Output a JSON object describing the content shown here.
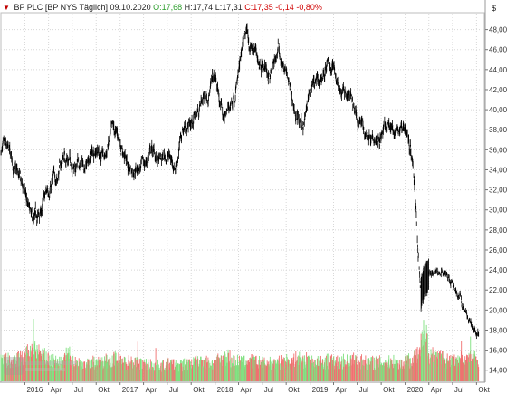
{
  "header": {
    "instrument": "BP PLC",
    "exchange": "[BP NYS",
    "period": "Täglich]",
    "date": "09.10.2020",
    "open": "O:17,68",
    "high": "H:17,74",
    "low": "L:17,31",
    "close": "C:17,35",
    "change": "-0,14",
    "change_pct": "-0,80%"
  },
  "currency": "$",
  "colors": {
    "price": "#000000",
    "volume_up": "#7fe07f",
    "volume_down": "#f07070",
    "grid": "#d8d8d8",
    "up_text": "#2a9d2a",
    "down_text": "#d00000"
  },
  "chart_data": {
    "type": "ohlc",
    "title": "BP PLC [BP NYS Täglich]",
    "ylabel": "$",
    "ylim": [
      12.8,
      49.5
    ],
    "y_ticks": [
      "14,00",
      "16,00",
      "18,00",
      "20,00",
      "22,00",
      "24,00",
      "26,00",
      "28,00",
      "30,00",
      "32,00",
      "34,00",
      "36,00",
      "38,00",
      "40,00",
      "42,00",
      "44,00",
      "46,00",
      "48,00"
    ],
    "x_ticks": [
      "2016",
      "Apr",
      "Jul",
      "Okt",
      "2017",
      "Apr",
      "Jul",
      "Okt",
      "2018",
      "Apr",
      "Jul",
      "Okt",
      "2019",
      "Apr",
      "Jul",
      "Okt",
      "2020",
      "Apr",
      "Jul",
      "Okt"
    ],
    "x_start": "2015-10-01",
    "x_end": "2020-10-31",
    "price_series": {
      "name": "BP",
      "points": [
        [
          "2015-10-01",
          36.0
        ],
        [
          "2015-11-01",
          35.3
        ],
        [
          "2015-12-01",
          33.5
        ],
        [
          "2016-01-01",
          31.5
        ],
        [
          "2016-02-01",
          28.2
        ],
        [
          "2016-03-01",
          29.5
        ],
        [
          "2016-04-01",
          32.2
        ],
        [
          "2016-05-01",
          33.2
        ],
        [
          "2016-06-01",
          35.5
        ],
        [
          "2016-07-01",
          34.8
        ],
        [
          "2016-08-01",
          34.2
        ],
        [
          "2016-09-01",
          35.0
        ],
        [
          "2016-10-01",
          36.5
        ],
        [
          "2016-11-01",
          35.0
        ],
        [
          "2016-12-01",
          37.5
        ],
        [
          "2017-01-01",
          37.0
        ],
        [
          "2017-02-01",
          34.2
        ],
        [
          "2017-03-01",
          34.5
        ],
        [
          "2017-04-01",
          34.2
        ],
        [
          "2017-05-01",
          36.0
        ],
        [
          "2017-06-01",
          34.6
        ],
        [
          "2017-07-01",
          35.5
        ],
        [
          "2017-08-01",
          34.5
        ],
        [
          "2017-09-01",
          38.2
        ],
        [
          "2017-10-01",
          38.8
        ],
        [
          "2017-11-01",
          40.0
        ],
        [
          "2017-12-01",
          42.0
        ],
        [
          "2018-01-01",
          43.0
        ],
        [
          "2018-02-01",
          39.0
        ],
        [
          "2018-03-01",
          40.5
        ],
        [
          "2018-04-01",
          43.5
        ],
        [
          "2018-05-01",
          47.2
        ],
        [
          "2018-06-01",
          45.5
        ],
        [
          "2018-07-01",
          45.0
        ],
        [
          "2018-08-01",
          43.2
        ],
        [
          "2018-09-01",
          46.0
        ],
        [
          "2018-10-01",
          43.5
        ],
        [
          "2018-11-01",
          40.0
        ],
        [
          "2018-12-01",
          38.0
        ],
        [
          "2019-01-01",
          41.5
        ],
        [
          "2019-02-01",
          42.5
        ],
        [
          "2019-03-01",
          44.0
        ],
        [
          "2019-04-01",
          44.5
        ],
        [
          "2019-05-01",
          42.0
        ],
        [
          "2019-06-01",
          41.5
        ],
        [
          "2019-07-01",
          39.5
        ],
        [
          "2019-08-01",
          37.5
        ],
        [
          "2019-09-01",
          38.0
        ],
        [
          "2019-10-01",
          37.5
        ],
        [
          "2019-11-01",
          38.5
        ],
        [
          "2019-12-01",
          37.8
        ],
        [
          "2020-01-01",
          38.5
        ],
        [
          "2020-02-01",
          34.5
        ],
        [
          "2020-03-01",
          22.0
        ],
        [
          "2020-04-01",
          24.0
        ],
        [
          "2020-05-01",
          23.5
        ],
        [
          "2020-06-01",
          24.0
        ],
        [
          "2020-07-01",
          22.5
        ],
        [
          "2020-08-01",
          21.0
        ],
        [
          "2020-09-01",
          19.0
        ],
        [
          "2020-10-09",
          17.35
        ]
      ]
    },
    "volume": {
      "ylim": [
        0,
        6
      ],
      "monthly_average": [
        2.0,
        1.8,
        2.2,
        2.6,
        2.8,
        2.3,
        1.9,
        1.7,
        2.4,
        1.8,
        1.6,
        1.8,
        1.7,
        2.0,
        2.1,
        1.8,
        1.9,
        1.7,
        1.6,
        1.5,
        1.5,
        1.6,
        1.5,
        1.7,
        1.8,
        1.9,
        1.7,
        1.9,
        2.3,
        1.9,
        1.8,
        1.9,
        1.8,
        1.7,
        1.7,
        1.8,
        1.9,
        2.1,
        2.0,
        1.8,
        1.8,
        1.9,
        1.8,
        1.9,
        2.0,
        1.9,
        1.8,
        1.8,
        1.8,
        1.9,
        1.7,
        2.0,
        2.4,
        3.6,
        2.6,
        2.2,
        2.0,
        1.9,
        2.1,
        2.2,
        2.0
      ],
      "spikes": [
        [
          "2016-02-03",
          6.0
        ],
        [
          "2017-03-10",
          3.8
        ],
        [
          "2017-05-18",
          3.2
        ],
        [
          "2020-03-12",
          5.9
        ],
        [
          "2020-03-23",
          5.4
        ],
        [
          "2020-08-04",
          3.9
        ],
        [
          "2020-09-08",
          4.3
        ]
      ]
    }
  }
}
